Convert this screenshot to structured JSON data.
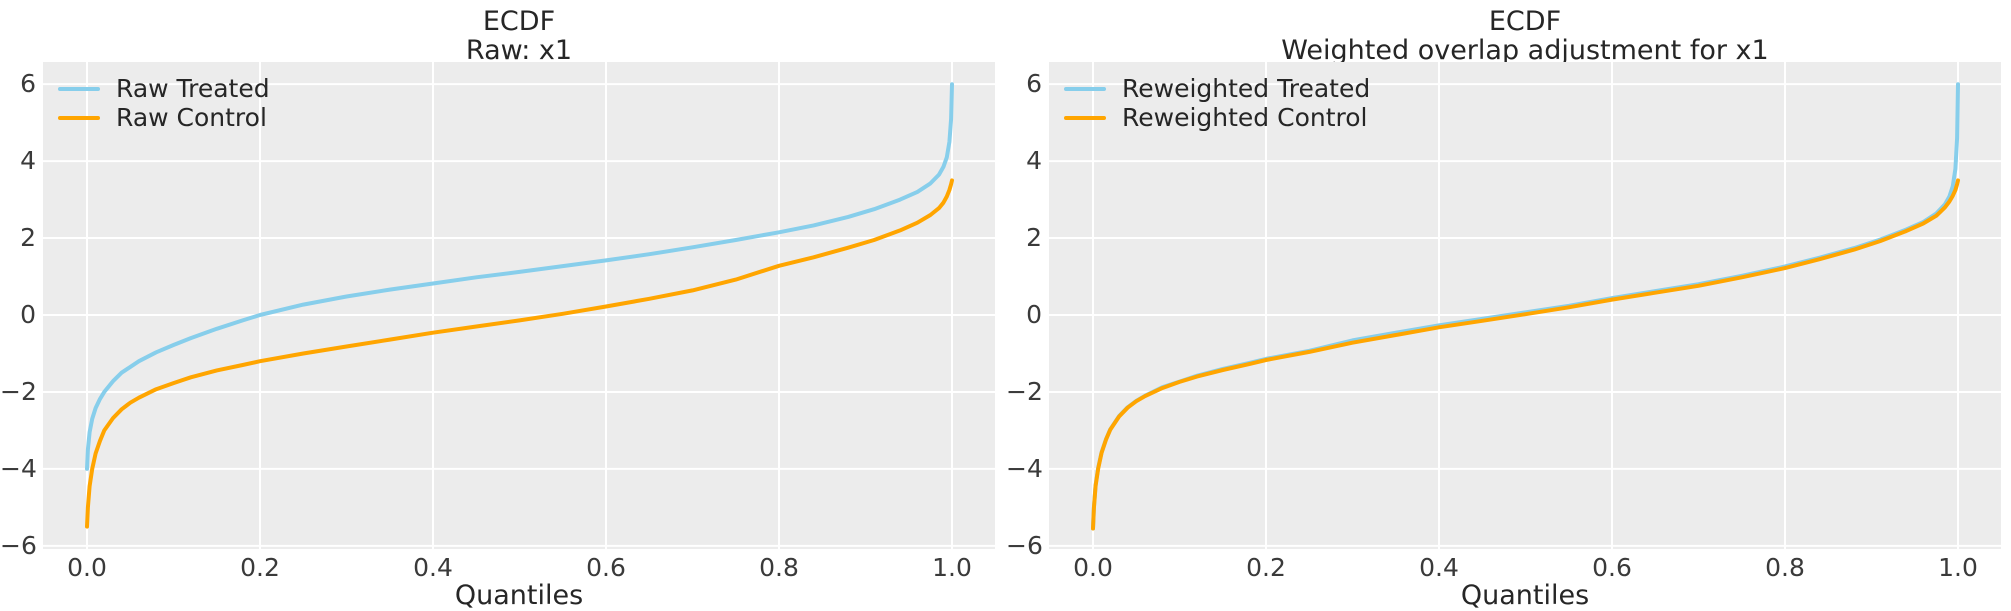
{
  "style": {
    "page_background": "#ffffff",
    "axes_background": "#ececec",
    "grid_color": "#ffffff",
    "text_color": "#262626",
    "tick_color": "#3a3a3a"
  },
  "chart_data": [
    {
      "type": "line",
      "title": "ECDF",
      "subtitle": "Raw: x1",
      "xlabel": "Quantiles",
      "ylabel": "",
      "xlim": [
        -0.051,
        1.05
      ],
      "ylim": [
        -6.08,
        6.58
      ],
      "grid": true,
      "legend_position": "upper left",
      "xticks": [
        {
          "label": "0.0",
          "p": 0.0
        },
        {
          "label": "0.2",
          "p": 0.2
        },
        {
          "label": "0.4",
          "p": 0.4
        },
        {
          "label": "0.6",
          "p": 0.6
        },
        {
          "label": "0.8",
          "p": 0.8
        },
        {
          "label": "1.0",
          "p": 1.0
        }
      ],
      "yticks": [
        {
          "label": "6",
          "v": 6
        },
        {
          "label": "4",
          "v": 4
        },
        {
          "label": "2",
          "v": 2
        },
        {
          "label": "0",
          "v": 0
        },
        {
          "label": "−2",
          "v": -2
        },
        {
          "label": "−4",
          "v": -4
        },
        {
          "label": "−6",
          "v": -6
        }
      ],
      "series": [
        {
          "name": "Raw Treated",
          "color": "#87CEEB",
          "points": [
            [
              0,
              -4.0
            ],
            [
              0.001,
              -3.5
            ],
            [
              0.003,
              -3.05
            ],
            [
              0.006,
              -2.7
            ],
            [
              0.01,
              -2.42
            ],
            [
              0.015,
              -2.18
            ],
            [
              0.02,
              -2.0
            ],
            [
              0.03,
              -1.72
            ],
            [
              0.04,
              -1.5
            ],
            [
              0.05,
              -1.35
            ],
            [
              0.06,
              -1.2
            ],
            [
              0.08,
              -0.97
            ],
            [
              0.1,
              -0.78
            ],
            [
              0.12,
              -0.6
            ],
            [
              0.15,
              -0.36
            ],
            [
              0.18,
              -0.14
            ],
            [
              0.2,
              0.0
            ],
            [
              0.25,
              0.27
            ],
            [
              0.3,
              0.48
            ],
            [
              0.35,
              0.66
            ],
            [
              0.4,
              0.82
            ],
            [
              0.45,
              0.98
            ],
            [
              0.5,
              1.12
            ],
            [
              0.55,
              1.27
            ],
            [
              0.6,
              1.42
            ],
            [
              0.65,
              1.58
            ],
            [
              0.7,
              1.76
            ],
            [
              0.75,
              1.95
            ],
            [
              0.8,
              2.15
            ],
            [
              0.84,
              2.33
            ],
            [
              0.88,
              2.55
            ],
            [
              0.91,
              2.75
            ],
            [
              0.94,
              3.0
            ],
            [
              0.96,
              3.2
            ],
            [
              0.975,
              3.42
            ],
            [
              0.985,
              3.65
            ],
            [
              0.99,
              3.85
            ],
            [
              0.994,
              4.1
            ],
            [
              0.997,
              4.5
            ],
            [
              0.999,
              5.1
            ],
            [
              1.0,
              6.0
            ]
          ]
        },
        {
          "name": "Raw Control",
          "color": "#FFA500",
          "points": [
            [
              0,
              -5.5
            ],
            [
              0.001,
              -5.0
            ],
            [
              0.003,
              -4.45
            ],
            [
              0.006,
              -4.0
            ],
            [
              0.01,
              -3.6
            ],
            [
              0.015,
              -3.27
            ],
            [
              0.02,
              -3.0
            ],
            [
              0.03,
              -2.68
            ],
            [
              0.04,
              -2.45
            ],
            [
              0.05,
              -2.28
            ],
            [
              0.06,
              -2.15
            ],
            [
              0.08,
              -1.93
            ],
            [
              0.1,
              -1.77
            ],
            [
              0.12,
              -1.62
            ],
            [
              0.15,
              -1.44
            ],
            [
              0.18,
              -1.3
            ],
            [
              0.2,
              -1.2
            ],
            [
              0.25,
              -1.0
            ],
            [
              0.3,
              -0.82
            ],
            [
              0.35,
              -0.64
            ],
            [
              0.4,
              -0.46
            ],
            [
              0.45,
              -0.3
            ],
            [
              0.5,
              -0.14
            ],
            [
              0.55,
              0.03
            ],
            [
              0.6,
              0.22
            ],
            [
              0.65,
              0.42
            ],
            [
              0.7,
              0.64
            ],
            [
              0.75,
              0.92
            ],
            [
              0.8,
              1.28
            ],
            [
              0.84,
              1.5
            ],
            [
              0.88,
              1.75
            ],
            [
              0.91,
              1.95
            ],
            [
              0.94,
              2.2
            ],
            [
              0.96,
              2.4
            ],
            [
              0.975,
              2.6
            ],
            [
              0.985,
              2.78
            ],
            [
              0.99,
              2.92
            ],
            [
              0.994,
              3.08
            ],
            [
              0.997,
              3.25
            ],
            [
              0.999,
              3.4
            ],
            [
              1.0,
              3.5
            ]
          ]
        }
      ]
    },
    {
      "type": "line",
      "title": "ECDF",
      "subtitle": "Weighted overlap adjustment for x1",
      "xlabel": "Quantiles",
      "ylabel": "",
      "xlim": [
        -0.051,
        1.05
      ],
      "ylim": [
        -6.08,
        6.58
      ],
      "grid": true,
      "legend_position": "upper left",
      "xticks": [
        {
          "label": "0.0",
          "p": 0.0
        },
        {
          "label": "0.2",
          "p": 0.2
        },
        {
          "label": "0.4",
          "p": 0.4
        },
        {
          "label": "0.6",
          "p": 0.6
        },
        {
          "label": "0.8",
          "p": 0.8
        },
        {
          "label": "1.0",
          "p": 1.0
        }
      ],
      "yticks": [
        {
          "label": "6",
          "v": 6
        },
        {
          "label": "4",
          "v": 4
        },
        {
          "label": "2",
          "v": 2
        },
        {
          "label": "0",
          "v": 0
        },
        {
          "label": "−2",
          "v": -2
        },
        {
          "label": "−4",
          "v": -4
        },
        {
          "label": "−6",
          "v": -6
        }
      ],
      "series": [
        {
          "name": "Reweighted Treated",
          "color": "#87CEEB",
          "points": [
            [
              0,
              -5.55
            ],
            [
              0.001,
              -5.0
            ],
            [
              0.003,
              -4.42
            ],
            [
              0.006,
              -3.97
            ],
            [
              0.01,
              -3.57
            ],
            [
              0.015,
              -3.23
            ],
            [
              0.02,
              -2.97
            ],
            [
              0.03,
              -2.63
            ],
            [
              0.04,
              -2.4
            ],
            [
              0.05,
              -2.23
            ],
            [
              0.06,
              -2.1
            ],
            [
              0.08,
              -1.88
            ],
            [
              0.1,
              -1.73
            ],
            [
              0.12,
              -1.58
            ],
            [
              0.15,
              -1.4
            ],
            [
              0.18,
              -1.25
            ],
            [
              0.2,
              -1.14
            ],
            [
              0.25,
              -0.93
            ],
            [
              0.3,
              -0.66
            ],
            [
              0.35,
              -0.46
            ],
            [
              0.4,
              -0.27
            ],
            [
              0.45,
              -0.1
            ],
            [
              0.5,
              0.07
            ],
            [
              0.55,
              0.24
            ],
            [
              0.6,
              0.44
            ],
            [
              0.65,
              0.62
            ],
            [
              0.7,
              0.8
            ],
            [
              0.75,
              1.02
            ],
            [
              0.8,
              1.26
            ],
            [
              0.84,
              1.49
            ],
            [
              0.88,
              1.74
            ],
            [
              0.91,
              1.96
            ],
            [
              0.94,
              2.22
            ],
            [
              0.96,
              2.42
            ],
            [
              0.975,
              2.64
            ],
            [
              0.985,
              2.88
            ],
            [
              0.99,
              3.08
            ],
            [
              0.994,
              3.35
            ],
            [
              0.997,
              3.8
            ],
            [
              0.999,
              4.6
            ],
            [
              1.0,
              6.0
            ]
          ]
        },
        {
          "name": "Reweighted Control",
          "color": "#FFA500",
          "points": [
            [
              0,
              -5.55
            ],
            [
              0.001,
              -5.02
            ],
            [
              0.003,
              -4.44
            ],
            [
              0.006,
              -3.99
            ],
            [
              0.01,
              -3.58
            ],
            [
              0.015,
              -3.24
            ],
            [
              0.02,
              -2.98
            ],
            [
              0.03,
              -2.64
            ],
            [
              0.04,
              -2.41
            ],
            [
              0.05,
              -2.24
            ],
            [
              0.06,
              -2.11
            ],
            [
              0.08,
              -1.9
            ],
            [
              0.1,
              -1.74
            ],
            [
              0.12,
              -1.6
            ],
            [
              0.15,
              -1.43
            ],
            [
              0.18,
              -1.28
            ],
            [
              0.2,
              -1.17
            ],
            [
              0.25,
              -0.96
            ],
            [
              0.3,
              -0.72
            ],
            [
              0.35,
              -0.52
            ],
            [
              0.4,
              -0.32
            ],
            [
              0.45,
              -0.15
            ],
            [
              0.5,
              0.02
            ],
            [
              0.55,
              0.2
            ],
            [
              0.6,
              0.4
            ],
            [
              0.65,
              0.58
            ],
            [
              0.7,
              0.76
            ],
            [
              0.75,
              0.98
            ],
            [
              0.8,
              1.22
            ],
            [
              0.84,
              1.45
            ],
            [
              0.88,
              1.7
            ],
            [
              0.91,
              1.92
            ],
            [
              0.94,
              2.18
            ],
            [
              0.96,
              2.38
            ],
            [
              0.975,
              2.58
            ],
            [
              0.985,
              2.8
            ],
            [
              0.99,
              2.95
            ],
            [
              0.994,
              3.1
            ],
            [
              0.997,
              3.25
            ],
            [
              0.999,
              3.4
            ],
            [
              1.0,
              3.5
            ]
          ]
        }
      ]
    }
  ]
}
